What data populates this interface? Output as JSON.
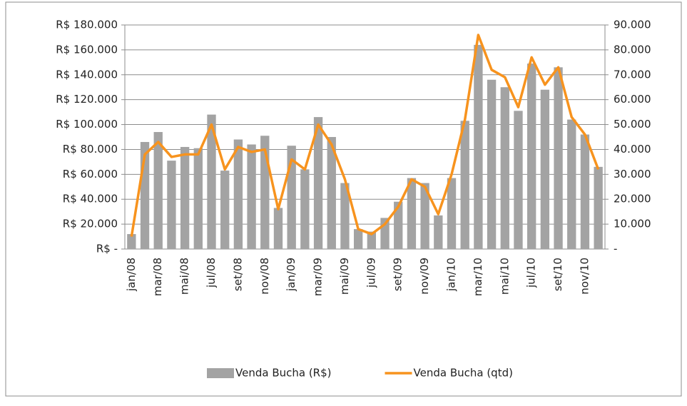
{
  "chart_data": {
    "type": "bar-line",
    "categories": [
      "jan/08",
      null,
      "mar/08",
      null,
      "mai/08",
      null,
      "jul/08",
      null,
      "set/08",
      null,
      "nov/08",
      null,
      "jan/09",
      null,
      "mar/09",
      null,
      "mai/09",
      null,
      "jul/09",
      null,
      "set/09",
      null,
      "nov/09",
      null,
      "jan/10",
      null,
      "mar/10",
      null,
      "mai/10",
      null,
      "jul/10",
      null,
      "set/10",
      null,
      "nov/10",
      null
    ],
    "series": [
      {
        "name": "Venda Bucha (R$)",
        "type": "bar",
        "color": "#a3a3a3",
        "values": [
          12000,
          86000,
          94000,
          71000,
          82000,
          81000,
          108000,
          63000,
          88000,
          84000,
          91000,
          33000,
          83000,
          64000,
          106000,
          90000,
          53000,
          16000,
          14000,
          25000,
          38000,
          57000,
          53000,
          27000,
          57000,
          103000,
          164000,
          136000,
          130000,
          111000,
          149000,
          128000,
          146000,
          104000,
          92000,
          66000
        ]
      },
      {
        "name": "Venda Bucha (qtd)",
        "type": "line",
        "color": "#f7931e",
        "axis": "y2",
        "values": [
          5000,
          38000,
          43000,
          37000,
          38000,
          38000,
          50000,
          32000,
          41000,
          39000,
          40000,
          16000,
          36000,
          32000,
          50000,
          42000,
          28000,
          8000,
          6000,
          10000,
          17000,
          28000,
          25000,
          14000,
          30000,
          52000,
          86000,
          72000,
          69000,
          57000,
          77000,
          66000,
          73000,
          53000,
          46000,
          32000
        ]
      }
    ],
    "ylim": [
      0,
      180000
    ],
    "yticks": [
      {
        "value": 0,
        "label": "R$ -"
      },
      {
        "value": 20000,
        "label": "R$ 20.000"
      },
      {
        "value": 40000,
        "label": "R$ 40.000"
      },
      {
        "value": 60000,
        "label": "R$ 60.000"
      },
      {
        "value": 80000,
        "label": "R$ 80.000"
      },
      {
        "value": 100000,
        "label": "R$ 100.000"
      },
      {
        "value": 120000,
        "label": "R$ 120.000"
      },
      {
        "value": 140000,
        "label": "R$ 140.000"
      },
      {
        "value": 160000,
        "label": "R$ 160.000"
      },
      {
        "value": 180000,
        "label": "R$ 180.000"
      }
    ],
    "y2lim": [
      0,
      90000
    ],
    "y2ticks": [
      {
        "value": 0,
        "label": "-"
      },
      {
        "value": 10000,
        "label": "10.000"
      },
      {
        "value": 20000,
        "label": "20.000"
      },
      {
        "value": 30000,
        "label": "30.000"
      },
      {
        "value": 40000,
        "label": "40.000"
      },
      {
        "value": 50000,
        "label": "50.000"
      },
      {
        "value": 60000,
        "label": "60.000"
      },
      {
        "value": 70000,
        "label": "70.000"
      },
      {
        "value": 80000,
        "label": "80.000"
      },
      {
        "value": 90000,
        "label": "90.000"
      }
    ],
    "grid": true,
    "legend": "bottom"
  }
}
